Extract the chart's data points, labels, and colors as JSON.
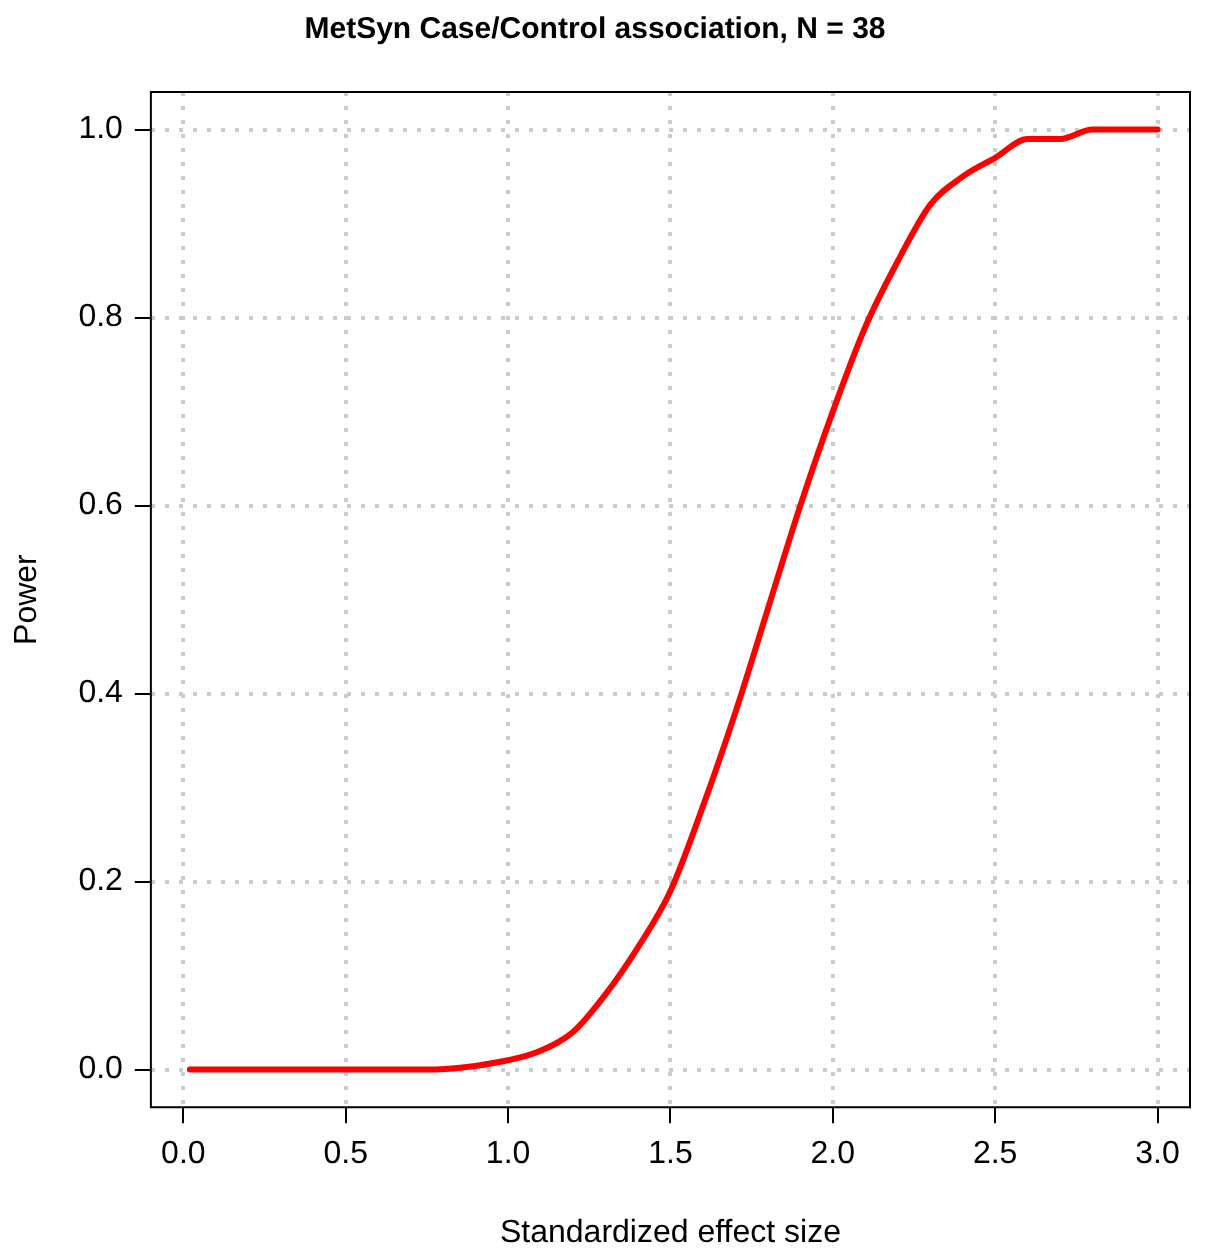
{
  "chart_data": {
    "type": "line",
    "title": "MetSyn Case/Control association, N = 38",
    "xlabel": "Standardized effect size",
    "ylabel": "Power",
    "x": [
      0.02,
      0.5,
      0.75,
      1.0,
      1.1,
      1.2,
      1.3,
      1.4,
      1.5,
      1.6,
      1.7,
      1.8,
      1.9,
      2.0,
      2.1,
      2.2,
      2.3,
      2.4,
      2.5,
      2.6,
      2.7,
      2.8,
      3.0
    ],
    "series": [
      {
        "color": "#ff0000",
        "values": [
          0,
          0,
          0,
          0.01,
          0.02,
          0.04,
          0.08,
          0.13,
          0.19,
          0.28,
          0.38,
          0.49,
          0.6,
          0.7,
          0.79,
          0.86,
          0.92,
          0.95,
          0.97,
          0.99,
          0.99,
          1.0,
          1.0
        ]
      }
    ],
    "xlim": [
      -0.1,
      3.1
    ],
    "xticks": [
      {
        "value": 0,
        "label": "0.0"
      },
      0.5,
      {
        "value": 1,
        "label": "1.0"
      },
      1.5,
      {
        "value": 2,
        "label": "2.0"
      },
      2.5,
      {
        "value": 3,
        "label": "3.0"
      }
    ],
    "ylim": [
      -0.04,
      1.04
    ],
    "yticks": [
      {
        "value": 0,
        "label": "0.0"
      },
      0.2,
      0.4,
      0.6,
      0.8,
      {
        "value": 1,
        "label": "1.0"
      }
    ],
    "grid": true,
    "legend": false,
    "marker": "none",
    "line_style": "solid"
  }
}
